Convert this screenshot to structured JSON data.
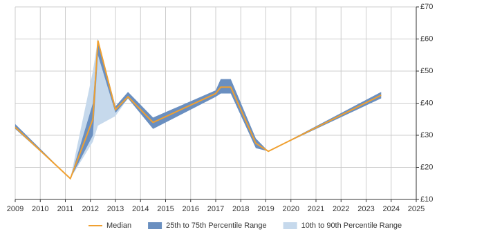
{
  "chart_data": {
    "type": "percentile-range-line",
    "x": [
      2009.0,
      2011.2,
      2012.1,
      2012.3,
      2013.0,
      2013.5,
      2014.5,
      2017.0,
      2017.2,
      2017.6,
      2018.6,
      2019.1,
      2023.6
    ],
    "series": [
      {
        "name": "10th to 90th Percentile Range",
        "color": "#c6d9ec",
        "low": [
          32,
          16.5,
          28,
          33,
          36,
          41.5,
          32,
          42,
          43,
          43,
          26,
          25,
          41.5
        ],
        "high": [
          33.5,
          16.5,
          50,
          60,
          39,
          43.5,
          35.5,
          44,
          47.5,
          47.5,
          29,
          25,
          43.5
        ]
      },
      {
        "name": "25th to 75th Percentile Range",
        "color": "#6a8fc0",
        "low": [
          32,
          16.5,
          30,
          55,
          37,
          41.5,
          32,
          42,
          43,
          43,
          26,
          25,
          41.5
        ],
        "high": [
          33.5,
          16.5,
          40,
          60,
          39,
          43.5,
          35.5,
          44,
          47.5,
          47.5,
          29,
          25,
          43.5
        ]
      },
      {
        "name": "Median",
        "color": "#f0a030",
        "values": [
          32.5,
          16.5,
          35,
          59.5,
          38,
          42,
          34,
          43,
          45,
          45,
          27.5,
          25,
          42.5
        ]
      }
    ],
    "legend_order": [
      2,
      1,
      0
    ],
    "xlim": [
      2009,
      2025
    ],
    "xticks": [
      2009,
      2010,
      2011,
      2012,
      2013,
      2014,
      2015,
      2016,
      2017,
      2018,
      2019,
      2020,
      2021,
      2022,
      2023,
      2024,
      2025
    ],
    "ylim": [
      10,
      70
    ],
    "yticks": [
      {
        "value": 10,
        "label": "£10"
      },
      {
        "value": 20,
        "label": "£20"
      },
      {
        "value": 30,
        "label": "£30"
      },
      {
        "value": 40,
        "label": "£40"
      },
      {
        "value": 50,
        "label": "£50"
      },
      {
        "value": 60,
        "label": "£60"
      },
      {
        "value": 70,
        "label": "£70"
      }
    ],
    "grid": true
  }
}
